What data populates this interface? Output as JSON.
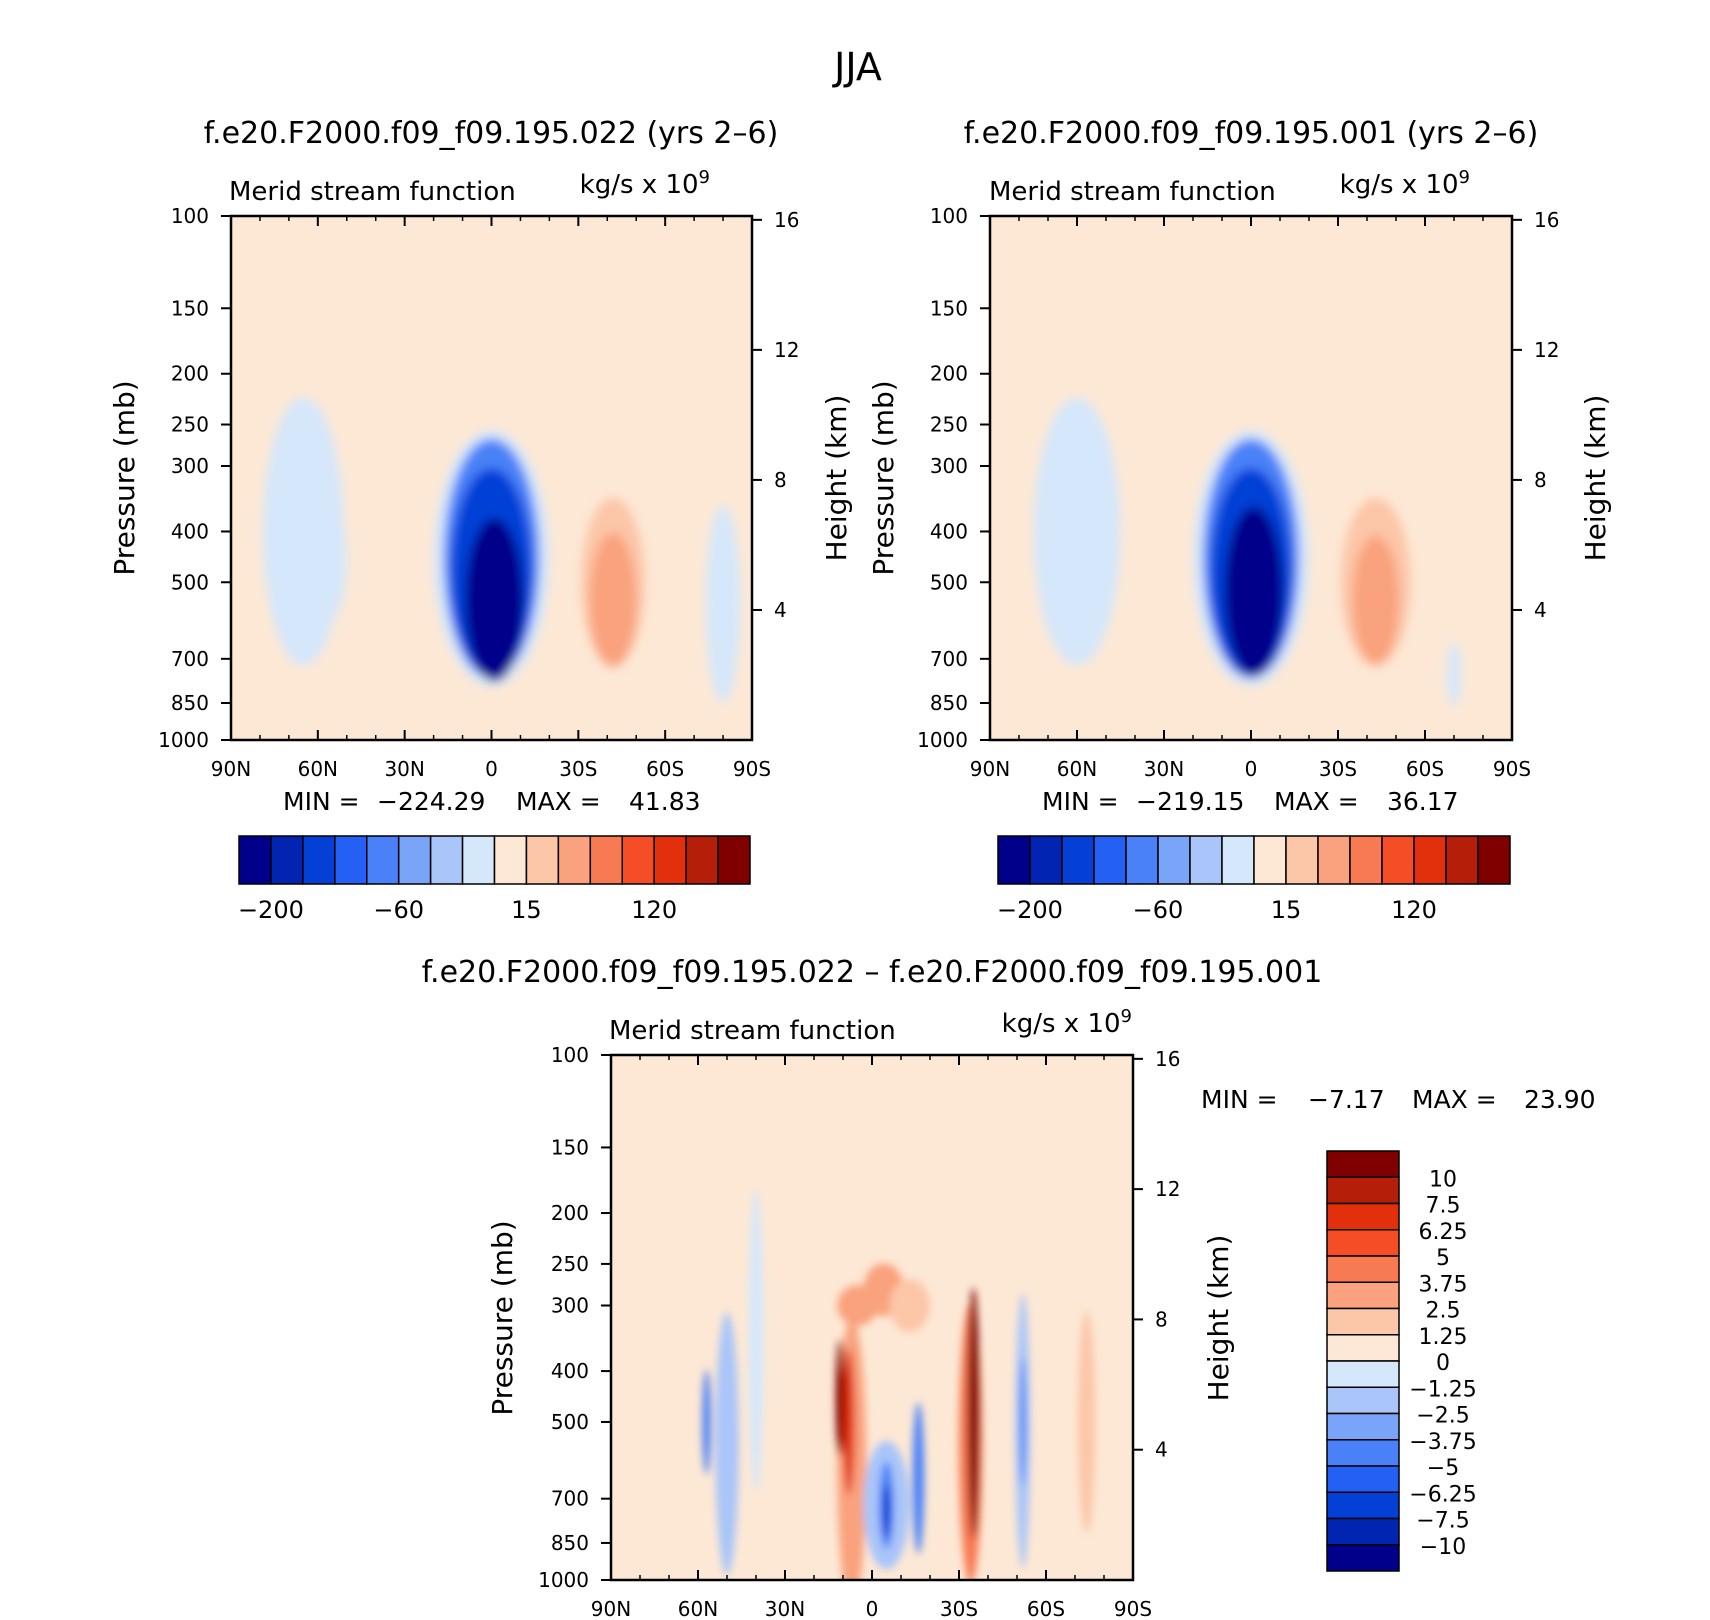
{
  "figure": {
    "title": "JJA"
  },
  "chart_data": [
    {
      "id": "panel1",
      "type": "contour",
      "title": "f.e20.F2000.f09_f09.195.022 (yrs 2–6)",
      "subtitle_left": "Merid stream function",
      "units": "kg/s x 10",
      "units_exp": "9",
      "ylabel": "Pressure (mb)",
      "ylabel_right": "Height (km)",
      "x_ticks": [
        "90N",
        "60N",
        "30N",
        "0",
        "30S",
        "60S",
        "90S"
      ],
      "x_values": [
        90,
        60,
        30,
        0,
        -30,
        -60,
        -90
      ],
      "y_ticks": [
        "100",
        "150",
        "200",
        "250",
        "300",
        "400",
        "500",
        "700",
        "850",
        "1000"
      ],
      "y_values": [
        100,
        150,
        200,
        250,
        300,
        400,
        500,
        700,
        850,
        1000
      ],
      "right_ticks": [
        "16",
        "12",
        "8",
        "4"
      ],
      "right_values": [
        16,
        12,
        8,
        4
      ],
      "xlim": [
        90,
        -90
      ],
      "ylim": [
        1000,
        100
      ],
      "y_scale": "log",
      "min_label": "MIN =",
      "min_value": "−224.29",
      "max_label": "MAX =",
      "max_value": "41.83",
      "colorbar_labels": [
        "−200",
        "−60",
        "15",
        "120"
      ],
      "colorbar_n": 16,
      "cells": [
        {
          "lat": 65,
          "p": 400,
          "v": -5,
          "w": 28,
          "h": 460
        },
        {
          "lat": 55,
          "p": 450,
          "v": -20,
          "w": 10,
          "h": 200
        },
        {
          "lat": 27,
          "p": 500,
          "v": 10,
          "w": 12,
          "h": 300
        },
        {
          "lat": 0,
          "p": 450,
          "v": -20,
          "w": 40,
          "h": 440
        },
        {
          "lat": 0,
          "p": 450,
          "v": -80,
          "w": 33,
          "h": 410
        },
        {
          "lat": 0,
          "p": 480,
          "v": -140,
          "w": 28,
          "h": 360
        },
        {
          "lat": -1,
          "p": 540,
          "v": -224.29,
          "w": 20,
          "h": 280
        },
        {
          "lat": -42,
          "p": 500,
          "v": 15,
          "w": 22,
          "h": 290
        },
        {
          "lat": -42,
          "p": 540,
          "v": 41.83,
          "w": 16,
          "h": 230
        },
        {
          "lat": -80,
          "p": 550,
          "v": -5,
          "w": 12,
          "h": 340
        }
      ]
    },
    {
      "id": "panel2",
      "type": "contour",
      "title": "f.e20.F2000.f09_f09.195.001 (yrs 2–6)",
      "subtitle_left": "Merid stream function",
      "units": "kg/s x 10",
      "units_exp": "9",
      "ylabel": "Pressure (mb)",
      "ylabel_right": "Height (km)",
      "x_ticks": [
        "90N",
        "60N",
        "30N",
        "0",
        "30S",
        "60S",
        "90S"
      ],
      "x_values": [
        90,
        60,
        30,
        0,
        -30,
        -60,
        -90
      ],
      "y_ticks": [
        "100",
        "150",
        "200",
        "250",
        "300",
        "400",
        "500",
        "700",
        "850",
        "1000"
      ],
      "y_values": [
        100,
        150,
        200,
        250,
        300,
        400,
        500,
        700,
        850,
        1000
      ],
      "right_ticks": [
        "16",
        "12",
        "8",
        "4"
      ],
      "right_values": [
        16,
        12,
        8,
        4
      ],
      "xlim": [
        90,
        -90
      ],
      "ylim": [
        1000,
        100
      ],
      "y_scale": "log",
      "min_label": "MIN =",
      "min_value": "−219.15",
      "max_label": "MAX =",
      "max_value": "36.17",
      "colorbar_labels": [
        "−200",
        "−60",
        "15",
        "120"
      ],
      "colorbar_n": 16,
      "cells": [
        {
          "lat": 60,
          "p": 400,
          "v": -5,
          "w": 30,
          "h": 460
        },
        {
          "lat": 52,
          "p": 500,
          "v": -20,
          "w": 7,
          "h": 180
        },
        {
          "lat": 27,
          "p": 500,
          "v": 10,
          "w": 12,
          "h": 290
        },
        {
          "lat": 0,
          "p": 450,
          "v": -20,
          "w": 40,
          "h": 440
        },
        {
          "lat": 0,
          "p": 450,
          "v": -80,
          "w": 33,
          "h": 410
        },
        {
          "lat": 0,
          "p": 480,
          "v": -140,
          "w": 28,
          "h": 360
        },
        {
          "lat": -1,
          "p": 520,
          "v": -219.15,
          "w": 20,
          "h": 290
        },
        {
          "lat": -43,
          "p": 500,
          "v": 15,
          "w": 24,
          "h": 290
        },
        {
          "lat": -43,
          "p": 540,
          "v": 36.17,
          "w": 16,
          "h": 220
        },
        {
          "lat": -70,
          "p": 750,
          "v": -20,
          "w": 5,
          "h": 110
        }
      ]
    },
    {
      "id": "panel3",
      "type": "contour",
      "title": "f.e20.F2000.f09_f09.195.022 – f.e20.F2000.f09_f09.195.001",
      "subtitle_left": "Merid stream function",
      "units": "kg/s x 10",
      "units_exp": "9",
      "ylabel": "Pressure (mb)",
      "ylabel_right": "Height (km)",
      "x_ticks": [
        "90N",
        "60N",
        "30N",
        "0",
        "30S",
        "60S",
        "90S"
      ],
      "x_values": [
        90,
        60,
        30,
        0,
        -30,
        -60,
        -90
      ],
      "y_ticks": [
        "100",
        "150",
        "200",
        "250",
        "300",
        "400",
        "500",
        "700",
        "850",
        "1000"
      ],
      "y_values": [
        100,
        150,
        200,
        250,
        300,
        400,
        500,
        700,
        850,
        1000
      ],
      "right_ticks": [
        "16",
        "12",
        "8",
        "4"
      ],
      "right_values": [
        16,
        12,
        8,
        4
      ],
      "xlim": [
        90,
        -90
      ],
      "ylim": [
        1000,
        100
      ],
      "y_scale": "log",
      "min_label": "MIN =",
      "min_value": "−7.17",
      "max_label": "MAX =",
      "max_value": "23.90",
      "colorbar_labels": [
        "10",
        "7.5",
        "6.25",
        "5",
        "3.75",
        "2.5",
        "1.25",
        "0",
        "−1.25",
        "−2.5",
        "−3.75",
        "−5",
        "−6.25",
        "−7.5",
        "−10"
      ],
      "colorbar_n": 16,
      "cells": [
        {
          "lat": 70,
          "p": 550,
          "v": 1,
          "w": 6,
          "h": 380
        },
        {
          "lat": 50,
          "p": 550,
          "v": -2,
          "w": 8,
          "h": 450
        },
        {
          "lat": 57,
          "p": 500,
          "v": -4,
          "w": 3,
          "h": 180
        },
        {
          "lat": 40,
          "p": 350,
          "v": -1,
          "w": 5,
          "h": 520
        },
        {
          "lat": 24,
          "p": 500,
          "v": 1,
          "w": 3,
          "h": 260
        },
        {
          "lat": 7,
          "p": 600,
          "v": 3,
          "w": 10,
          "h": 500
        },
        {
          "lat": 5,
          "p": 300,
          "v": 3,
          "w": 14,
          "h": 70
        },
        {
          "lat": 8,
          "p": 500,
          "v": 7,
          "w": 4,
          "h": 250
        },
        {
          "lat": 11,
          "p": 450,
          "v": 12,
          "w": 3,
          "h": 200
        },
        {
          "lat": -4,
          "p": 280,
          "v": 3,
          "w": 14,
          "h": 90
        },
        {
          "lat": -13,
          "p": 300,
          "v": 2,
          "w": 14,
          "h": 90
        },
        {
          "lat": -5,
          "p": 720,
          "v": -2,
          "w": 16,
          "h": 220
        },
        {
          "lat": -5,
          "p": 720,
          "v": -5,
          "w": 5,
          "h": 150
        },
        {
          "lat": -5,
          "p": 740,
          "v": -7.17,
          "w": 3,
          "h": 90
        },
        {
          "lat": -16,
          "p": 640,
          "v": -4,
          "w": 4,
          "h": 260
        },
        {
          "lat": -34,
          "p": 550,
          "v": 4,
          "w": 8,
          "h": 480
        },
        {
          "lat": -35,
          "p": 480,
          "v": 10,
          "w": 4,
          "h": 430
        },
        {
          "lat": -36,
          "p": 450,
          "v": 23.9,
          "w": 2,
          "h": 180
        },
        {
          "lat": -52,
          "p": 520,
          "v": -2,
          "w": 5,
          "h": 470
        },
        {
          "lat": -52,
          "p": 500,
          "v": -5,
          "w": 2,
          "h": 220
        },
        {
          "lat": -74,
          "p": 500,
          "v": 1.5,
          "w": 6,
          "h": 380
        }
      ]
    }
  ],
  "colors": {
    "scale": [
      "#00008a",
      "#0125b1",
      "#0440d6",
      "#2560f4",
      "#4a81f8",
      "#7aa4f8",
      "#a9c5f9",
      "#d5e7fb",
      "#fde8d5",
      "#fcc6a8",
      "#f9a27d",
      "#f77a52",
      "#f54e26",
      "#e1300b",
      "#b51e08",
      "#800000"
    ]
  }
}
